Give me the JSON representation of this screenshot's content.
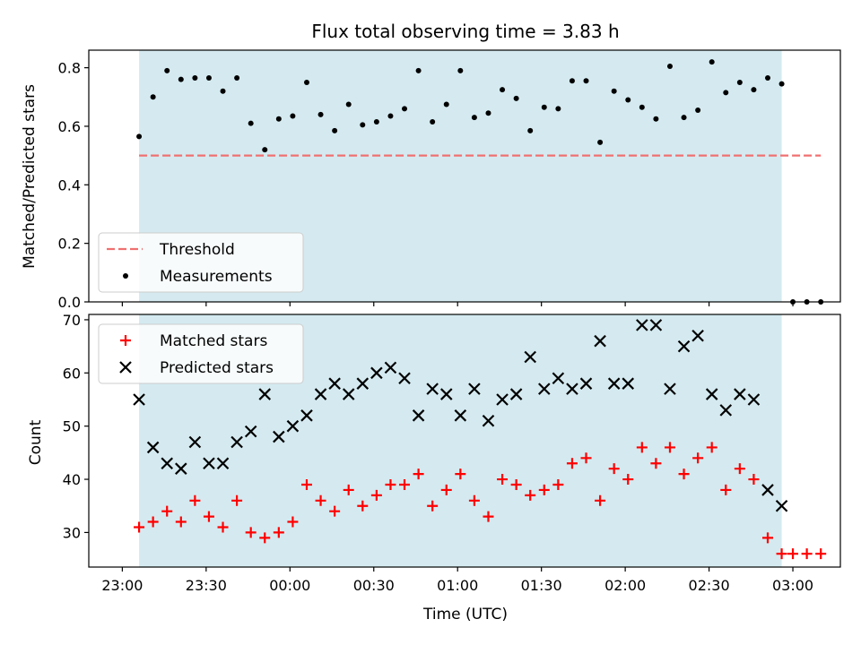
{
  "chart_data": [
    {
      "type": "scatter",
      "title": "Flux total observing time = 3.83 h",
      "xlabel": "",
      "ylabel": "Matched/Predicted stars",
      "ylim": [
        0,
        0.86
      ],
      "yticks": [
        "0.0",
        "0.2",
        "0.4",
        "0.6",
        "0.8"
      ],
      "ytick_values": [
        0.0,
        0.2,
        0.4,
        0.6,
        0.8
      ],
      "xlim_minutes_from_2300": [
        -12,
        257
      ],
      "observing_window": {
        "start": "23:06",
        "end": "02:56",
        "color": "#d4eaf0"
      },
      "threshold": {
        "name": "Threshold",
        "value": 0.5,
        "x_start": "23:06",
        "x_end": "03:10",
        "color": "#f07070",
        "style": "dashed"
      },
      "series": [
        {
          "name": "Measurements",
          "marker": "dot",
          "color": "#000000",
          "x": [
            "23:06",
            "23:11",
            "23:16",
            "23:21",
            "23:26",
            "23:31",
            "23:36",
            "23:41",
            "23:46",
            "23:51",
            "23:56",
            "00:01",
            "00:06",
            "00:11",
            "00:16",
            "00:21",
            "00:26",
            "00:31",
            "00:36",
            "00:41",
            "00:46",
            "00:51",
            "00:56",
            "01:01",
            "01:06",
            "01:11",
            "01:16",
            "01:21",
            "01:26",
            "01:31",
            "01:36",
            "01:41",
            "01:46",
            "01:51",
            "01:56",
            "02:01",
            "02:06",
            "02:11",
            "02:16",
            "02:21",
            "02:26",
            "02:31",
            "02:36",
            "02:41",
            "02:46",
            "02:51",
            "02:56",
            "03:00",
            "03:05",
            "03:10"
          ],
          "y": [
            0.565,
            0.7,
            0.79,
            0.76,
            0.765,
            0.765,
            0.72,
            0.765,
            0.61,
            0.52,
            0.625,
            0.635,
            0.75,
            0.64,
            0.585,
            0.675,
            0.605,
            0.615,
            0.635,
            0.66,
            0.79,
            0.615,
            0.675,
            0.79,
            0.63,
            0.645,
            0.725,
            0.695,
            0.585,
            0.665,
            0.66,
            0.755,
            0.755,
            0.545,
            0.72,
            0.69,
            0.665,
            0.625,
            0.805,
            0.63,
            0.655,
            0.82,
            0.715,
            0.75,
            0.725,
            0.765,
            0.745,
            0.0,
            0.0,
            0.0
          ]
        }
      ],
      "legend": {
        "placement": "lower-left",
        "entries": [
          "Threshold",
          "Measurements"
        ]
      }
    },
    {
      "type": "scatter",
      "title": "",
      "xlabel": "Time (UTC)",
      "ylabel": "Count",
      "ylim": [
        23.5,
        71
      ],
      "yticks": [
        "30",
        "40",
        "50",
        "60",
        "70"
      ],
      "ytick_values": [
        30,
        40,
        50,
        60,
        70
      ],
      "xlim_minutes_from_2300": [
        -12,
        257
      ],
      "xticks": [
        "23:00",
        "23:30",
        "00:00",
        "00:30",
        "01:00",
        "01:30",
        "02:00",
        "02:30",
        "03:00"
      ],
      "xtick_minutes_from_2300": [
        0,
        30,
        60,
        90,
        120,
        150,
        180,
        210,
        240
      ],
      "observing_window": {
        "start": "23:06",
        "end": "02:56",
        "color": "#d4eaf0"
      },
      "series": [
        {
          "name": "Matched stars",
          "marker": "plus",
          "color": "#ff0000",
          "x": [
            "23:06",
            "23:11",
            "23:16",
            "23:21",
            "23:26",
            "23:31",
            "23:36",
            "23:41",
            "23:46",
            "23:51",
            "23:56",
            "00:01",
            "00:06",
            "00:11",
            "00:16",
            "00:21",
            "00:26",
            "00:31",
            "00:36",
            "00:41",
            "00:46",
            "00:51",
            "00:56",
            "01:01",
            "01:06",
            "01:11",
            "01:16",
            "01:21",
            "01:26",
            "01:31",
            "01:36",
            "01:41",
            "01:46",
            "01:51",
            "01:56",
            "02:01",
            "02:06",
            "02:11",
            "02:16",
            "02:21",
            "02:26",
            "02:31",
            "02:36",
            "02:41",
            "02:46",
            "02:51",
            "02:56",
            "03:00",
            "03:05",
            "03:10"
          ],
          "y": [
            31,
            32,
            34,
            32,
            36,
            33,
            31,
            36,
            30,
            29,
            30,
            32,
            39,
            36,
            34,
            38,
            35,
            37,
            39,
            39,
            41,
            35,
            38,
            41,
            36,
            33,
            40,
            39,
            37,
            38,
            39,
            43,
            44,
            36,
            42,
            40,
            46,
            43,
            46,
            41,
            44,
            46,
            38,
            42,
            40,
            29,
            26,
            26,
            26,
            26
          ]
        },
        {
          "name": "Predicted stars",
          "marker": "x",
          "color": "#000000",
          "x": [
            "23:06",
            "23:11",
            "23:16",
            "23:21",
            "23:26",
            "23:31",
            "23:36",
            "23:41",
            "23:46",
            "23:51",
            "23:56",
            "00:01",
            "00:06",
            "00:11",
            "00:16",
            "00:21",
            "00:26",
            "00:31",
            "00:36",
            "00:41",
            "00:46",
            "00:51",
            "00:56",
            "01:01",
            "01:06",
            "01:11",
            "01:16",
            "01:21",
            "01:26",
            "01:31",
            "01:36",
            "01:41",
            "01:46",
            "01:51",
            "01:56",
            "02:01",
            "02:06",
            "02:11",
            "02:16",
            "02:21",
            "02:26",
            "02:31",
            "02:36",
            "02:41",
            "02:46",
            "02:51",
            "02:56"
          ],
          "y": [
            55,
            46,
            43,
            42,
            47,
            43,
            43,
            47,
            49,
            56,
            48,
            50,
            52,
            56,
            58,
            56,
            58,
            60,
            61,
            59,
            52,
            57,
            56,
            52,
            57,
            51,
            55,
            56,
            63,
            57,
            59,
            57,
            58,
            66,
            58,
            58,
            69,
            69,
            57,
            65,
            67,
            56,
            53,
            56,
            55,
            38,
            35
          ]
        }
      ],
      "legend": {
        "placement": "upper-left",
        "entries": [
          "Matched stars",
          "Predicted stars"
        ]
      }
    }
  ]
}
